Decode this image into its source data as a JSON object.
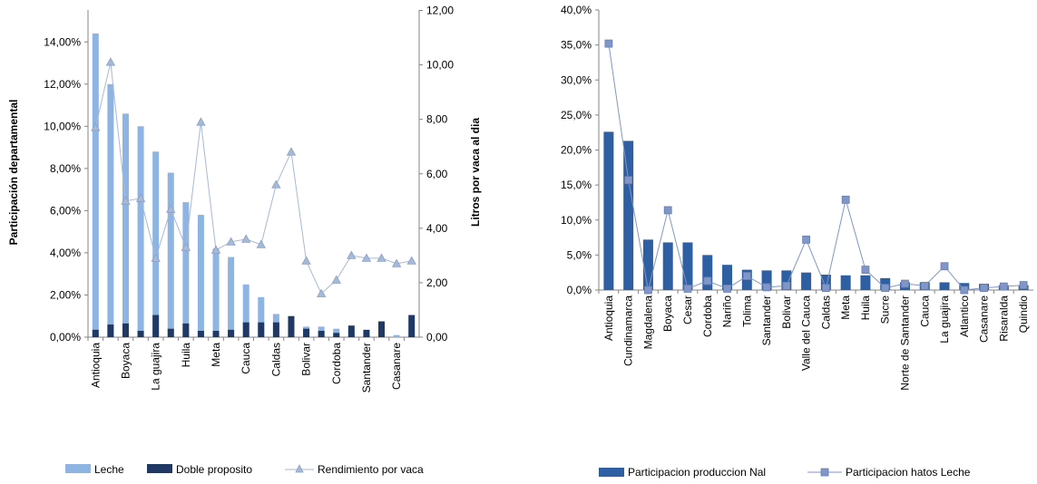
{
  "chart_data": [
    {
      "type": "bar",
      "title": "",
      "xlabel": "",
      "ylabel": "Participación departamental",
      "y2label": "Litros por vaca al dia",
      "ylim": [
        0,
        0.15
      ],
      "y2lim": [
        0,
        12
      ],
      "yticks": [
        "0,00%",
        "2,00%",
        "4,00%",
        "6,00%",
        "8,00%",
        "10,00%",
        "12,00%",
        "14,00%"
      ],
      "y2ticks": [
        "0,00",
        "2,00",
        "4,00",
        "6,00",
        "8,00",
        "10,00",
        "12,00"
      ],
      "categories": [
        "Antioquia",
        "",
        "Boyaca",
        "",
        "La guajira",
        "",
        "Huila",
        "",
        "Meta",
        "",
        "Cauca",
        "",
        "Caldas",
        "",
        "Bolivar",
        "",
        "Cordoba",
        "",
        "Santander",
        "",
        "Casanare",
        ""
      ],
      "series": [
        {
          "name": "Leche",
          "color": "#8EB4E3",
          "values": [
            0.144,
            0.12,
            0.106,
            0.1,
            0.088,
            0.078,
            0.064,
            0.058,
            0.042,
            0.038,
            0.025,
            0.019,
            0.011,
            0.008,
            0.005,
            0.005,
            0.004,
            0.003,
            0.002,
            0.002,
            0.001,
            0.001
          ]
        },
        {
          "name": "Doble proposito",
          "color": "#1F3864",
          "values": [
            0.0035,
            0.006,
            0.0065,
            0.003,
            0.0105,
            0.004,
            0.0065,
            0.003,
            0.003,
            0.0035,
            0.007,
            0.007,
            0.007,
            0.01,
            0.004,
            0.003,
            0.002,
            0.0055,
            0.0035,
            0.0075,
            0.0,
            0.0105
          ]
        },
        {
          "name": "Rendimiento por vaca",
          "color": "#A6B9D6",
          "axis": "secondary",
          "values": [
            7.7,
            10.1,
            5.0,
            5.1,
            2.9,
            4.7,
            3.3,
            7.9,
            3.2,
            3.5,
            3.6,
            3.4,
            5.6,
            6.8,
            2.8,
            1.6,
            2.1,
            3.0,
            2.9,
            2.9,
            2.7,
            2.8
          ]
        }
      ],
      "legend_position": "bottom",
      "grid": false
    },
    {
      "type": "bar",
      "title": "",
      "xlabel": "",
      "ylabel": "",
      "ylim": [
        0,
        0.4
      ],
      "yticks": [
        "0,0%",
        "5,0%",
        "10,0%",
        "15,0%",
        "20,0%",
        "25,0%",
        "30,0%",
        "35,0%",
        "40,0%"
      ],
      "categories": [
        "Antioquia",
        "Cundinamarca",
        "Magdalena",
        "Boyaca",
        "Cesar",
        "Cordoba",
        "Nariño",
        "Tolima",
        "Santander",
        "Bolivar",
        "Valle del Cauca",
        "Caldas",
        "Meta",
        "Huila",
        "Sucre",
        "Norte de Santander",
        "Cauca",
        "La guajira",
        "Atlantico",
        "Casanare",
        "Risaralda",
        "Quindio"
      ],
      "series": [
        {
          "name": "Participacion produccion Nal",
          "color": "#2E5FA3",
          "values": [
            0.226,
            0.213,
            0.072,
            0.068,
            0.068,
            0.05,
            0.036,
            0.029,
            0.028,
            0.028,
            0.025,
            0.022,
            0.021,
            0.021,
            0.017,
            0.011,
            0.011,
            0.011,
            0.01,
            0.009,
            0.007,
            0.007
          ]
        },
        {
          "name": "Participacion hatos Leche",
          "color": "#8096C8",
          "values": [
            0.352,
            0.157,
            0.0,
            0.114,
            0.002,
            0.013,
            0.002,
            0.02,
            0.004,
            0.006,
            0.072,
            0.003,
            0.129,
            0.029,
            0.003,
            0.009,
            0.006,
            0.034,
            0.0,
            0.003,
            0.005,
            0.007
          ]
        }
      ],
      "legend_position": "bottom",
      "grid": false
    }
  ]
}
